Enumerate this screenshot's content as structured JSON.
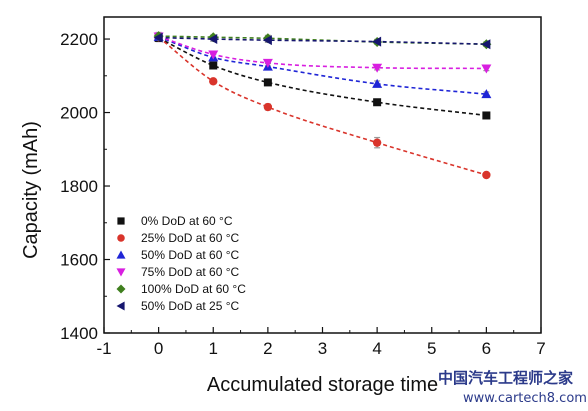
{
  "chart_data": {
    "type": "scatter",
    "xlabel": "Accumulated storage time",
    "ylabel": "Capacity (mAh)",
    "xlim": [
      -1,
      7
    ],
    "ylim": [
      1400,
      2260
    ],
    "xticks": [
      -1,
      0,
      1,
      2,
      3,
      4,
      5,
      6,
      7
    ],
    "yticks": [
      1400,
      1600,
      1800,
      2000,
      2200
    ],
    "grid": false,
    "legend_position": "bottom-left",
    "series": [
      {
        "name": "0% DoD at 60 °C",
        "marker": "square",
        "color": "#111111",
        "x": [
          0,
          1,
          2,
          4,
          6
        ],
        "y": [
          2203,
          2128,
          2082,
          2028,
          1992
        ],
        "err": [
          10,
          6,
          8,
          8,
          6
        ],
        "fit": "dashed"
      },
      {
        "name": "25% DoD at 60 °C",
        "marker": "circle",
        "color": "#d9342b",
        "x": [
          0,
          1,
          2,
          4,
          6
        ],
        "y": [
          2205,
          2085,
          2015,
          1918,
          1830
        ],
        "err": [
          10,
          6,
          8,
          14,
          6
        ],
        "fit": "dashed"
      },
      {
        "name": "50% DoD at 60 °C",
        "marker": "triangle-up",
        "color": "#1f25d6",
        "x": [
          0,
          1,
          2,
          4,
          6
        ],
        "y": [
          2206,
          2150,
          2125,
          2078,
          2050
        ],
        "err": [
          10,
          8,
          8,
          8,
          6
        ],
        "fit": "dashed"
      },
      {
        "name": "75% DoD at 60 °C",
        "marker": "triangle-down",
        "color": "#d81fe0",
        "x": [
          0,
          1,
          2,
          4,
          6
        ],
        "y": [
          2207,
          2158,
          2135,
          2122,
          2120
        ],
        "err": [
          10,
          8,
          8,
          6,
          6
        ],
        "fit": "dashed"
      },
      {
        "name": "100% DoD at 60 °C",
        "marker": "diamond",
        "color": "#3f7f1e",
        "x": [
          0,
          1,
          2,
          4,
          6
        ],
        "y": [
          2208,
          2205,
          2202,
          2192,
          2186
        ],
        "err": [
          10,
          6,
          8,
          6,
          6
        ],
        "fit": "dashed"
      },
      {
        "name": "50% DoD at 25 °C",
        "marker": "triangle-left",
        "color": "#16166e",
        "x": [
          0,
          1,
          2,
          4,
          6
        ],
        "y": [
          2204,
          2200,
          2197,
          2193,
          2186
        ],
        "err": [
          10,
          6,
          6,
          6,
          6
        ],
        "fit": "dashed"
      }
    ]
  },
  "watermark": {
    "line1": "中国汽车工程师之家",
    "line2": "www.cartech8.com"
  }
}
